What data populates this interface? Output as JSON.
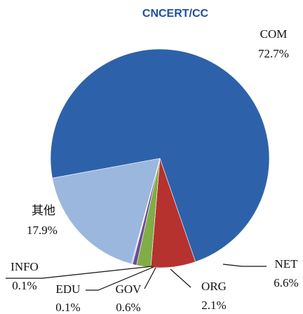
{
  "chart_data": {
    "type": "pie",
    "title": "CNCERT/CC",
    "categories": [
      "COM",
      "NET",
      "ORG",
      "GOV",
      "EDU",
      "INFO",
      "其他"
    ],
    "values": [
      72.7,
      6.6,
      2.1,
      0.6,
      0.1,
      0.1,
      17.9
    ],
    "value_labels": [
      "72.7%",
      "6.6%",
      "2.1%",
      "0.6%",
      "0.1%",
      "0.1%",
      "17.9%"
    ],
    "colors": [
      "#2d62aa",
      "#b5322f",
      "#80ad46",
      "#6b4d94",
      "#3d9fb5",
      "#2d62aa",
      "#9bb7dd"
    ]
  }
}
